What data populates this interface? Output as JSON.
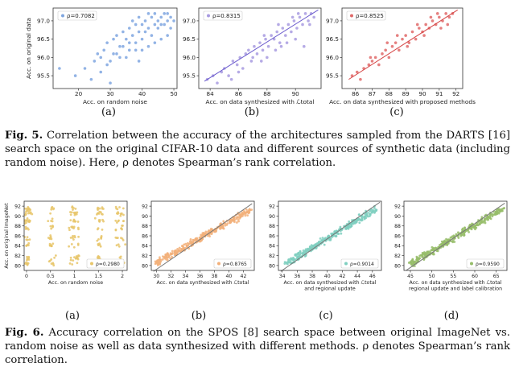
{
  "fig5": {
    "label": "Fig. 5.",
    "caption_text": "Correlation between the accuracy of the architectures sampled from the DARTS [16] search space on the original CIFAR-10 data and different sources of synthetic data (including random noise). Here, ρ denotes Spearman’s rank correlation.",
    "panel_labels": [
      "(a)",
      "(b)",
      "(c)"
    ]
  },
  "fig6": {
    "label": "Fig. 6.",
    "caption_text": "Accuracy correlation on the SPOS [8] search space between original ImageNet vs. random noise as well as data synthesized with different methods. ρ denotes Spearman’s rank correlation.",
    "panel_labels": [
      "(a)",
      "(b)",
      "(c)",
      "(d)"
    ]
  },
  "chart_data": [
    {
      "id": "fig5a",
      "type": "scatter",
      "color": "#7fa6e0",
      "legend": "ρ=0.7082",
      "xlabel": "Acc. on random noise",
      "ylabel": "Acc. on original data",
      "xlim": [
        12,
        51
      ],
      "ylim": [
        95.15,
        97.35
      ],
      "xticks": [
        20,
        30,
        40,
        50
      ],
      "yticks": [
        95.5,
        96.0,
        96.5,
        97.0
      ],
      "trend": null,
      "points": [
        [
          14,
          95.7
        ],
        [
          19,
          95.5
        ],
        [
          22,
          95.7
        ],
        [
          24,
          95.4
        ],
        [
          25,
          95.9
        ],
        [
          26,
          96.1
        ],
        [
          27,
          95.6
        ],
        [
          28,
          96.2
        ],
        [
          29,
          96.4
        ],
        [
          30,
          95.9
        ],
        [
          30,
          95.3
        ],
        [
          31,
          96.5
        ],
        [
          32,
          96.1
        ],
        [
          32,
          96.6
        ],
        [
          33,
          96.3
        ],
        [
          34,
          96.7
        ],
        [
          35,
          96.5
        ],
        [
          35,
          96.0
        ],
        [
          36,
          96.8
        ],
        [
          36,
          96.4
        ],
        [
          37,
          96.6
        ],
        [
          37,
          97.0
        ],
        [
          38,
          96.9
        ],
        [
          38,
          96.2
        ],
        [
          39,
          96.7
        ],
        [
          39,
          97.1
        ],
        [
          40,
          96.5
        ],
        [
          40,
          96.9
        ],
        [
          41,
          97.0
        ],
        [
          41,
          96.7
        ],
        [
          42,
          97.2
        ],
        [
          42,
          96.8
        ],
        [
          43,
          96.6
        ],
        [
          43,
          97.1
        ],
        [
          44,
          96.9
        ],
        [
          44,
          97.2
        ],
        [
          45,
          97.0
        ],
        [
          45,
          96.8
        ],
        [
          46,
          97.1
        ],
        [
          46,
          96.5
        ],
        [
          47,
          97.2
        ],
        [
          47,
          96.9
        ],
        [
          48,
          97.0
        ],
        [
          48,
          97.2
        ],
        [
          49,
          96.8
        ],
        [
          49,
          97.1
        ],
        [
          50,
          97.0
        ],
        [
          33,
          96.0
        ],
        [
          31,
          96.1
        ],
        [
          38,
          96.4
        ],
        [
          42,
          96.3
        ],
        [
          40,
          96.2
        ],
        [
          36,
          96.2
        ],
        [
          44,
          96.4
        ],
        [
          39,
          95.9
        ],
        [
          27,
          96.0
        ],
        [
          29,
          95.8
        ],
        [
          34,
          96.3
        ],
        [
          46,
          96.9
        ],
        [
          48,
          96.6
        ]
      ]
    },
    {
      "id": "fig5b",
      "type": "scatter",
      "color": "#a89be0",
      "legend": "ρ=0.8315",
      "xlabel": "Acc. on data synthesized with ℒtotal",
      "ylabel": "",
      "xlim": [
        83.2,
        91.8
      ],
      "ylim": [
        95.15,
        97.35
      ],
      "xticks": [
        84,
        86,
        88,
        90
      ],
      "yticks": [
        95.5,
        96.0,
        96.5,
        97.0
      ],
      "trend": [
        [
          83.6,
          95.35
        ],
        [
          91.6,
          97.3
        ]
      ],
      "points": [
        [
          83.8,
          95.4
        ],
        [
          84.2,
          95.5
        ],
        [
          84.5,
          95.3
        ],
        [
          84.8,
          95.6
        ],
        [
          85.0,
          95.7
        ],
        [
          85.3,
          95.5
        ],
        [
          85.6,
          95.9
        ],
        [
          85.9,
          95.8
        ],
        [
          86.1,
          96.0
        ],
        [
          86.3,
          95.7
        ],
        [
          86.5,
          96.1
        ],
        [
          86.7,
          96.2
        ],
        [
          86.9,
          95.9
        ],
        [
          87.1,
          96.3
        ],
        [
          87.3,
          96.1
        ],
        [
          87.5,
          96.4
        ],
        [
          87.7,
          96.2
        ],
        [
          87.9,
          96.5
        ],
        [
          88.1,
          96.3
        ],
        [
          88.3,
          96.6
        ],
        [
          88.5,
          96.5
        ],
        [
          88.7,
          96.7
        ],
        [
          88.9,
          96.4
        ],
        [
          89.1,
          96.8
        ],
        [
          89.3,
          96.6
        ],
        [
          89.5,
          96.9
        ],
        [
          89.7,
          96.7
        ],
        [
          89.9,
          97.0
        ],
        [
          90.1,
          96.8
        ],
        [
          90.3,
          97.1
        ],
        [
          90.5,
          96.9
        ],
        [
          90.7,
          97.2
        ],
        [
          90.9,
          97.0
        ],
        [
          91.1,
          97.2
        ],
        [
          91.3,
          97.1
        ],
        [
          86.0,
          95.6
        ],
        [
          87.0,
          96.0
        ],
        [
          88.0,
          96.0
        ],
        [
          89.0,
          96.3
        ],
        [
          90.0,
          96.5
        ],
        [
          90.6,
          96.3
        ],
        [
          89.4,
          96.4
        ],
        [
          88.6,
          96.2
        ],
        [
          87.6,
          95.9
        ],
        [
          85.5,
          95.4
        ],
        [
          91.0,
          96.9
        ],
        [
          90.2,
          97.2
        ],
        [
          89.8,
          97.1
        ],
        [
          88.8,
          96.9
        ],
        [
          87.8,
          96.6
        ]
      ]
    },
    {
      "id": "fig5c",
      "type": "scatter",
      "color": "#e06a6a",
      "legend": "ρ=0.8525",
      "xlabel": "Acc. on data synthesized with proposed methods",
      "ylabel": "",
      "xlim": [
        85.2,
        92.4
      ],
      "ylim": [
        95.15,
        97.35
      ],
      "xticks": [
        86,
        87,
        88,
        89,
        90,
        91,
        92
      ],
      "yticks": [
        95.5,
        96.0,
        96.5,
        97.0
      ],
      "trend": [
        [
          85.6,
          95.4
        ],
        [
          92.1,
          97.3
        ]
      ],
      "points": [
        [
          85.8,
          95.5
        ],
        [
          86.1,
          95.6
        ],
        [
          86.3,
          95.4
        ],
        [
          86.5,
          95.7
        ],
        [
          86.8,
          95.8
        ],
        [
          87.0,
          95.9
        ],
        [
          87.2,
          96.0
        ],
        [
          87.4,
          95.8
        ],
        [
          87.6,
          96.1
        ],
        [
          87.8,
          96.2
        ],
        [
          88.0,
          96.0
        ],
        [
          88.2,
          96.3
        ],
        [
          88.4,
          96.4
        ],
        [
          88.6,
          96.2
        ],
        [
          88.8,
          96.5
        ],
        [
          89.0,
          96.6
        ],
        [
          89.2,
          96.4
        ],
        [
          89.4,
          96.7
        ],
        [
          89.6,
          96.5
        ],
        [
          89.8,
          96.8
        ],
        [
          90.0,
          96.7
        ],
        [
          90.2,
          96.9
        ],
        [
          90.4,
          96.8
        ],
        [
          90.6,
          97.0
        ],
        [
          90.8,
          96.9
        ],
        [
          91.0,
          97.1
        ],
        [
          91.2,
          97.0
        ],
        [
          91.4,
          97.2
        ],
        [
          91.6,
          97.1
        ],
        [
          91.8,
          97.2
        ],
        [
          89.1,
          96.3
        ],
        [
          90.1,
          96.6
        ],
        [
          88.5,
          96.6
        ],
        [
          91.1,
          96.8
        ],
        [
          90.9,
          97.2
        ],
        [
          87.9,
          96.4
        ],
        [
          86.9,
          96.0
        ],
        [
          89.7,
          96.9
        ],
        [
          91.5,
          96.9
        ],
        [
          90.5,
          97.1
        ]
      ]
    },
    {
      "id": "fig6a",
      "type": "scatter",
      "color": "#e8c66a",
      "legend": "ρ=0.2980",
      "xlabel": "Acc. on random noise",
      "ylabel": "Acc. on original ImageNet",
      "xlim": [
        -0.05,
        2.1
      ],
      "ylim": [
        79,
        93
      ],
      "xticks": [
        0.0,
        0.5,
        1.0,
        1.5,
        2.0
      ],
      "yticks": [
        80,
        82,
        84,
        86,
        88,
        90,
        92
      ],
      "trend": null,
      "clusters": true
    },
    {
      "id": "fig6b",
      "type": "scatter",
      "color": "#f2b07a",
      "legend": "ρ=0.8765",
      "xlabel": "Acc. on data synthesized with ℒtotal",
      "ylabel": "",
      "xlim": [
        29.3,
        43.5
      ],
      "ylim": [
        79,
        93
      ],
      "xticks": [
        30,
        32,
        34,
        36,
        38,
        40,
        42
      ],
      "yticks": [
        80,
        82,
        84,
        86,
        88,
        90,
        92
      ],
      "trend": [
        [
          29.6,
          78.8
        ],
        [
          43.2,
          92.5
        ]
      ],
      "band": [
        [
          30,
          80.5
        ],
        [
          43,
          91.2
        ]
      ]
    },
    {
      "id": "fig6c",
      "type": "scatter",
      "color": "#7fcfc0",
      "legend": "ρ=0.9014",
      "xlabel": "Acc. on data synthesized with ℒtotal",
      "xlabel2": "and regional update",
      "ylabel": "",
      "xlim": [
        33.5,
        47.2
      ],
      "ylim": [
        79,
        93
      ],
      "xticks": [
        34,
        36,
        38,
        40,
        42,
        44,
        46
      ],
      "yticks": [
        80,
        82,
        84,
        86,
        88,
        90,
        92
      ],
      "trend": [
        [
          33.8,
          78.8
        ],
        [
          47,
          92.8
        ]
      ],
      "band": [
        [
          34.5,
          80.3
        ],
        [
          46.5,
          91.5
        ]
      ]
    },
    {
      "id": "fig6d",
      "type": "scatter",
      "color": "#96bd6a",
      "legend": "ρ=0.9590",
      "xlabel": "Acc. on data synthesized with ℒtotal",
      "xlabel2": "regional update and label calibration",
      "ylabel": "",
      "xlim": [
        43.5,
        67.5
      ],
      "ylim": [
        79,
        93
      ],
      "xticks": [
        45,
        50,
        55,
        60,
        65
      ],
      "yticks": [
        80,
        82,
        84,
        86,
        88,
        90,
        92
      ],
      "trend": [
        [
          44,
          79
        ],
        [
          67,
          92.6
        ]
      ],
      "band": [
        [
          45,
          80.3
        ],
        [
          66.5,
          91.5
        ]
      ]
    }
  ]
}
